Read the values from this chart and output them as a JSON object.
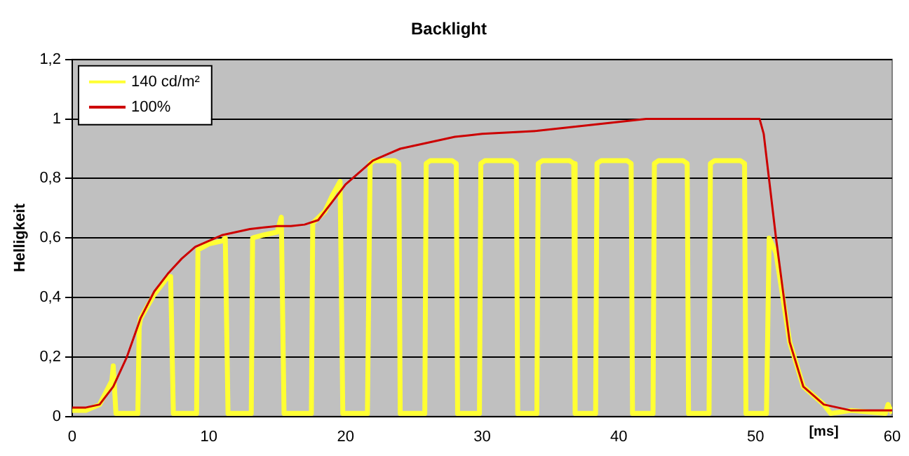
{
  "chart_data": {
    "type": "line",
    "title": "Backlight",
    "xlabel": "[ms]",
    "ylabel": "Helligkeit",
    "xlim": [
      0,
      60
    ],
    "xticks": [
      0,
      10,
      20,
      30,
      40,
      50,
      60
    ],
    "ylim": [
      0,
      1.2
    ],
    "yticks": [
      0,
      {
        "value": 0.2,
        "label": "0,2"
      },
      {
        "value": 0.4,
        "label": "0,4"
      },
      {
        "value": 0.6,
        "label": "0,6"
      },
      {
        "value": 0.8,
        "label": "0,8"
      },
      1,
      {
        "value": 1.2,
        "label": "1,2"
      }
    ],
    "grid": "y",
    "legend": "top left",
    "marker": "none",
    "line_style": "solid",
    "series": [
      {
        "name": "140 cd/m²",
        "color": "#ffff33",
        "x": [
          0,
          1,
          2,
          2.9,
          3.0,
          3.2,
          4.8,
          4.9,
          5.0,
          6,
          7,
          7.2,
          7.4,
          9.1,
          9.2,
          10,
          11,
          11.2,
          11.4,
          13.1,
          13.2,
          14,
          15,
          15.3,
          15.5,
          17.5,
          17.6,
          18.5,
          19,
          19.6,
          19.8,
          21.6,
          21.8,
          22.1,
          23.6,
          23.9,
          24.0,
          25.8,
          25.9,
          26.2,
          27.8,
          28.1,
          28.2,
          29.8,
          29.9,
          30.2,
          32.2,
          32.5,
          32.6,
          34.0,
          34.1,
          34.4,
          36.4,
          36.7,
          36.8,
          38.3,
          38.4,
          38.7,
          40.6,
          40.9,
          41.0,
          42.5,
          42.6,
          42.9,
          44.7,
          45.0,
          45.1,
          46.6,
          46.7,
          47.0,
          48.9,
          49.2,
          49.3,
          50.8,
          51.0,
          51.5,
          52.5,
          53.5,
          55,
          55.5,
          57,
          59.5,
          59.7,
          60
        ],
        "values": [
          0.02,
          0.02,
          0.04,
          0.12,
          0.17,
          0.01,
          0.01,
          0.3,
          0.33,
          0.41,
          0.47,
          0.47,
          0.01,
          0.01,
          0.56,
          0.58,
          0.59,
          0.6,
          0.01,
          0.01,
          0.6,
          0.61,
          0.62,
          0.67,
          0.01,
          0.01,
          0.65,
          0.69,
          0.74,
          0.79,
          0.01,
          0.01,
          0.85,
          0.86,
          0.86,
          0.85,
          0.01,
          0.01,
          0.85,
          0.86,
          0.86,
          0.85,
          0.01,
          0.01,
          0.85,
          0.86,
          0.86,
          0.85,
          0.01,
          0.01,
          0.85,
          0.86,
          0.86,
          0.85,
          0.01,
          0.01,
          0.85,
          0.86,
          0.86,
          0.85,
          0.01,
          0.01,
          0.85,
          0.86,
          0.86,
          0.85,
          0.01,
          0.01,
          0.85,
          0.86,
          0.86,
          0.85,
          0.01,
          0.01,
          0.6,
          0.55,
          0.25,
          0.1,
          0.04,
          0.01,
          0.02,
          0.01,
          0.04,
          0.01
        ]
      },
      {
        "name": "100%",
        "color": "#cc0000",
        "x": [
          0,
          1,
          2,
          3,
          4,
          5,
          6,
          7,
          8,
          9,
          10,
          11,
          12,
          13,
          14,
          15,
          16,
          17,
          18,
          19,
          20,
          21,
          22,
          23,
          24,
          25,
          26,
          27,
          28,
          29,
          30,
          32,
          34,
          36,
          38,
          40,
          42,
          45,
          48,
          50,
          50.3,
          50.6,
          51.5,
          52.5,
          53.5,
          55,
          57,
          60
        ],
        "values": [
          0.03,
          0.03,
          0.04,
          0.1,
          0.2,
          0.33,
          0.42,
          0.48,
          0.53,
          0.57,
          0.59,
          0.61,
          0.62,
          0.63,
          0.635,
          0.64,
          0.64,
          0.645,
          0.66,
          0.72,
          0.78,
          0.82,
          0.86,
          0.88,
          0.9,
          0.91,
          0.92,
          0.93,
          0.94,
          0.945,
          0.95,
          0.955,
          0.96,
          0.97,
          0.98,
          0.99,
          1.0,
          1.0,
          1.0,
          1.0,
          1.0,
          0.95,
          0.6,
          0.25,
          0.1,
          0.04,
          0.02,
          0.02
        ]
      }
    ]
  }
}
